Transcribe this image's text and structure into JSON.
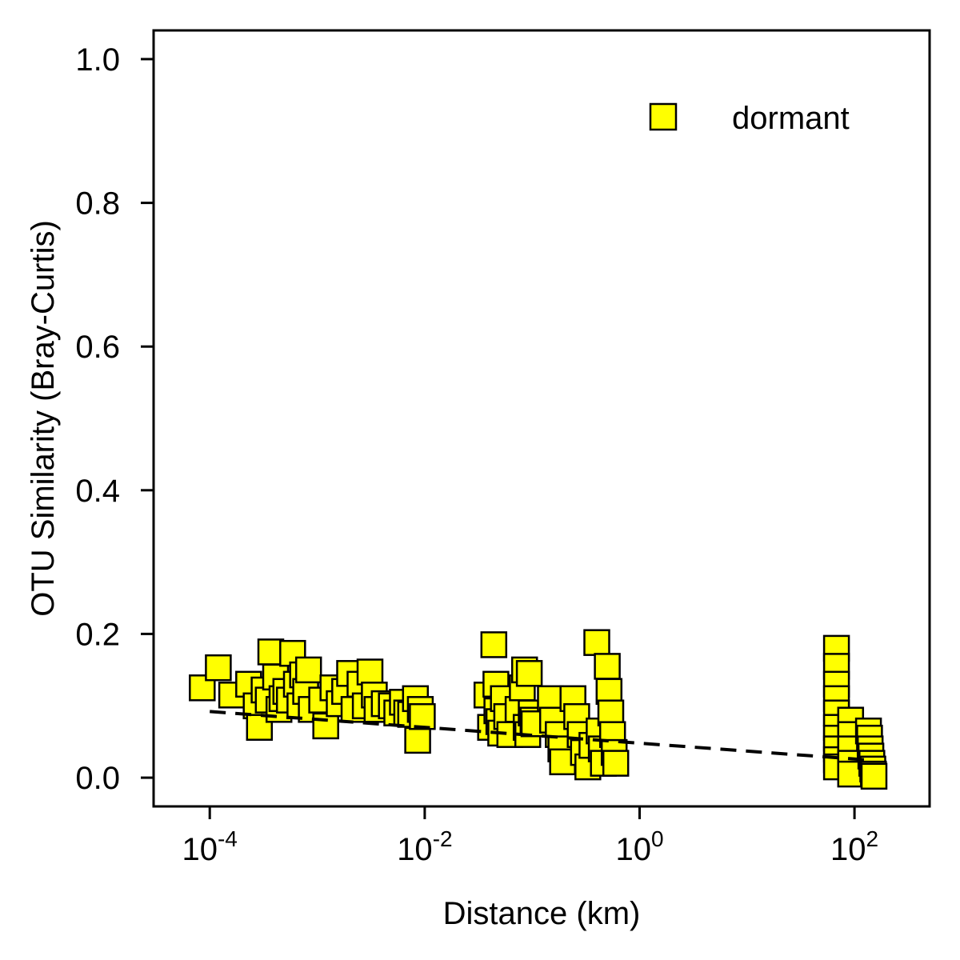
{
  "chart_data": {
    "type": "scatter",
    "xlabel": "Distance (km)",
    "ylabel": "OTU Similarity (Bray-Curtis)",
    "x_scale": "log10",
    "xlim": [
      3e-05,
      500
    ],
    "ylim": [
      -0.04,
      1.04
    ],
    "x_ticks": [
      {
        "value": 0.0001,
        "base": "10",
        "exp": "-4"
      },
      {
        "value": 0.01,
        "base": "10",
        "exp": "-2"
      },
      {
        "value": 1,
        "base": "10",
        "exp": "0"
      },
      {
        "value": 100,
        "base": "10",
        "exp": "2"
      }
    ],
    "y_ticks": [
      {
        "value": 0.0,
        "label": "0.0"
      },
      {
        "value": 0.2,
        "label": "0.2"
      },
      {
        "value": 0.4,
        "label": "0.4"
      },
      {
        "value": 0.6,
        "label": "0.6"
      },
      {
        "value": 0.8,
        "label": "0.8"
      },
      {
        "value": 1.0,
        "label": "1.0"
      }
    ],
    "legend": {
      "position": "top-right",
      "entries": [
        {
          "label": "dormant",
          "color": "#ffff00",
          "marker": "square"
        }
      ]
    },
    "grid": false,
    "series": [
      {
        "name": "dormant",
        "marker": "square",
        "fill": "#ffff00",
        "stroke": "#000000",
        "points": [
          [
            8.5e-05,
            0.125
          ],
          [
            0.00012,
            0.153
          ],
          [
            0.00016,
            0.115
          ],
          [
            0.00023,
            0.13
          ],
          [
            0.00027,
            0.1
          ],
          [
            0.00029,
            0.07
          ],
          [
            0.00032,
            0.122
          ],
          [
            0.00035,
            0.108
          ],
          [
            0.00037,
            0.175
          ],
          [
            0.00041,
            0.14
          ],
          [
            0.00044,
            0.095
          ],
          [
            0.00047,
            0.11
          ],
          [
            0.00051,
            0.12
          ],
          [
            0.00055,
            0.108
          ],
          [
            0.00059,
            0.173
          ],
          [
            0.00064,
            0.13
          ],
          [
            0.00069,
            0.1
          ],
          [
            0.00073,
            0.143
          ],
          [
            0.00078,
            0.12
          ],
          [
            0.00083,
            0.15
          ],
          [
            0.00088,
            0.095
          ],
          [
            0.0011,
            0.108
          ],
          [
            0.0012,
            0.072
          ],
          [
            0.0014,
            0.125
          ],
          [
            0.0016,
            0.103
          ],
          [
            0.0018,
            0.12
          ],
          [
            0.002,
            0.145
          ],
          [
            0.0022,
            0.095
          ],
          [
            0.0025,
            0.13
          ],
          [
            0.0028,
            0.1
          ],
          [
            0.0031,
            0.147
          ],
          [
            0.0034,
            0.115
          ],
          [
            0.0036,
            0.095
          ],
          [
            0.0042,
            0.103
          ],
          [
            0.0049,
            0.1
          ],
          [
            0.0055,
            0.09
          ],
          [
            0.0062,
            0.105
          ],
          [
            0.0068,
            0.09
          ],
          [
            0.0074,
            0.088
          ],
          [
            0.0082,
            0.11
          ],
          [
            0.0086,
            0.052
          ],
          [
            0.0091,
            0.095
          ],
          [
            0.0095,
            0.085
          ],
          [
            0.038,
            0.115
          ],
          [
            0.041,
            0.07
          ],
          [
            0.044,
            0.185
          ],
          [
            0.046,
            0.13
          ],
          [
            0.047,
            0.093
          ],
          [
            0.049,
            0.078
          ],
          [
            0.051,
            0.062
          ],
          [
            0.054,
            0.11
          ],
          [
            0.058,
            0.085
          ],
          [
            0.062,
            0.06
          ],
          [
            0.074,
            0.095
          ],
          [
            0.081,
            0.125
          ],
          [
            0.085,
            0.15
          ],
          [
            0.088,
            0.07
          ],
          [
            0.091,
            0.06
          ],
          [
            0.094,
            0.145
          ],
          [
            0.098,
            0.09
          ],
          [
            0.102,
            0.08
          ],
          [
            0.104,
            0.075
          ],
          [
            0.148,
            0.11
          ],
          [
            0.155,
            0.08
          ],
          [
            0.175,
            0.06
          ],
          [
            0.185,
            0.04
          ],
          [
            0.192,
            0.022
          ],
          [
            0.24,
            0.11
          ],
          [
            0.26,
            0.085
          ],
          [
            0.28,
            0.06
          ],
          [
            0.3,
            0.035
          ],
          [
            0.33,
            0.015
          ],
          [
            0.36,
            0.045
          ],
          [
            0.4,
            0.188
          ],
          [
            0.42,
            0.065
          ],
          [
            0.44,
            0.04
          ],
          [
            0.46,
            0.02
          ],
          [
            0.5,
            0.155
          ],
          [
            0.52,
            0.12
          ],
          [
            0.54,
            0.09
          ],
          [
            0.56,
            0.06
          ],
          [
            0.58,
            0.035
          ],
          [
            0.6,
            0.02
          ],
          [
            68,
            0.18
          ],
          [
            68,
            0.155
          ],
          [
            68,
            0.13
          ],
          [
            68,
            0.11
          ],
          [
            68,
            0.09
          ],
          [
            68,
            0.07
          ],
          [
            68,
            0.055
          ],
          [
            68,
            0.04
          ],
          [
            68,
            0.025
          ],
          [
            68,
            0.015
          ],
          [
            92,
            0.08
          ],
          [
            92,
            0.06
          ],
          [
            92,
            0.04
          ],
          [
            92,
            0.02
          ],
          [
            92,
            0.005
          ],
          [
            135,
            0.065
          ],
          [
            138,
            0.055
          ],
          [
            140,
            0.04
          ],
          [
            142,
            0.03
          ],
          [
            145,
            0.02
          ],
          [
            148,
            0.012
          ],
          [
            150,
            0.005
          ],
          [
            152,
            0.002
          ]
        ]
      }
    ],
    "trend_line": {
      "style": "dashed",
      "color": "#000000",
      "x": [
        0.0001,
        150
      ],
      "y": [
        0.092,
        0.024
      ]
    }
  }
}
